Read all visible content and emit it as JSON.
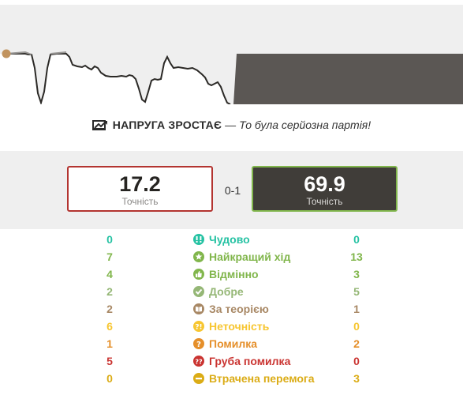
{
  "graph": {
    "label": "evaluation-graph",
    "colors": {
      "background": "#efefef",
      "advantage_fill": "#5b5754",
      "line": "#2b2926",
      "white_area": "#ffffff",
      "current_marker": "#c1935e"
    }
  },
  "headline": {
    "icon": "tension-rising-icon",
    "title": "НАПРУГА ЗРОСТАЄ",
    "dash": "—",
    "comment": "То була серйозна партія!"
  },
  "accuracy": {
    "white": {
      "value": "17.2",
      "label": "Точність",
      "border": "#b33430"
    },
    "black": {
      "value": "69.9",
      "label": "Точність",
      "border": "#81b64c"
    },
    "result": "0-1"
  },
  "classifications": [
    {
      "key": "brilliant",
      "label": "Чудово",
      "white": "0",
      "black": "0",
      "color": "#26c2a3",
      "icon": "brilliant-icon"
    },
    {
      "key": "best",
      "label": "Найкращий хід",
      "white": "7",
      "black": "13",
      "color": "#81b64c",
      "icon": "star-icon"
    },
    {
      "key": "excellent",
      "label": "Відмінно",
      "white": "4",
      "black": "3",
      "color": "#81b64c",
      "icon": "thumbs-up-icon"
    },
    {
      "key": "good",
      "label": "Добре",
      "white": "2",
      "black": "5",
      "color": "#95b776",
      "icon": "check-icon"
    },
    {
      "key": "book",
      "label": "За теорією",
      "white": "2",
      "black": "1",
      "color": "#a88865",
      "icon": "book-icon"
    },
    {
      "key": "inaccuracy",
      "label": "Неточність",
      "white": "6",
      "black": "0",
      "color": "#f7c631",
      "icon": "inaccuracy-icon"
    },
    {
      "key": "mistake",
      "label": "Помилка",
      "white": "1",
      "black": "2",
      "color": "#e58f2a",
      "icon": "question-icon"
    },
    {
      "key": "blunder",
      "label": "Груба помилка",
      "white": "5",
      "black": "0",
      "color": "#ca3431",
      "icon": "double-question-icon"
    },
    {
      "key": "missed_win",
      "label": "Втрачена перемога",
      "white": "0",
      "black": "3",
      "color": "#dbac16",
      "icon": "minus-icon"
    }
  ]
}
